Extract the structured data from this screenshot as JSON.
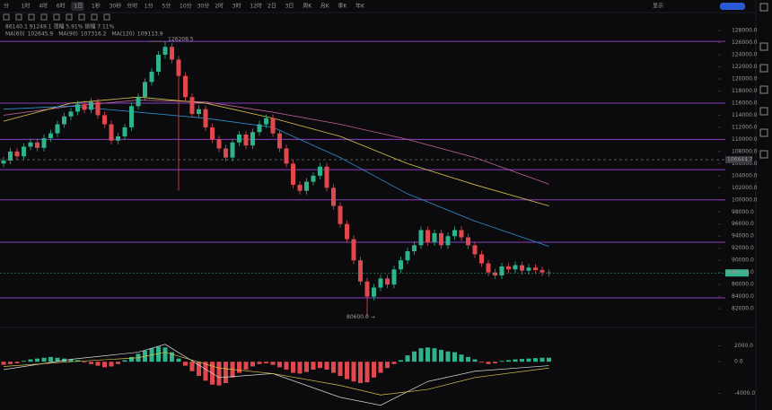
{
  "toolbar": {
    "timeframes": [
      "分",
      "1时",
      "4时",
      "6时",
      "1日",
      "1秒",
      "30秒",
      "分时",
      "1分",
      "5分",
      "10分",
      "30分",
      "2时",
      "3时",
      "12时",
      "2日",
      "3日",
      "周K",
      "月K",
      "季K",
      "年K"
    ],
    "selected": "1日",
    "right": [
      "显示"
    ]
  },
  "chart_data": {
    "type": "candlestick",
    "info_line": "86140.1  91249.1  涨幅 5.91%  振幅 7.11%",
    "colors": {
      "up": "#2fb38a",
      "down": "#e0484d",
      "level": "#8a3fbf"
    },
    "open": [
      106000,
      106500,
      108000,
      107200,
      108800,
      109500,
      108600,
      110200,
      111000,
      112500,
      113800,
      114600,
      115800,
      114900,
      116200,
      114000,
      112500,
      109800,
      110500,
      112000,
      115500,
      117000,
      119500,
      121200,
      124000,
      125300,
      123200,
      120500,
      117000,
      114200,
      115000,
      112000,
      110000,
      108500,
      107000,
      109500,
      110800,
      109000,
      111200,
      112500,
      113500,
      111000,
      108500,
      106000,
      102500,
      101500,
      103000,
      104000,
      105500,
      102000,
      99000,
      96000,
      93500,
      90000,
      86500,
      84000,
      85500,
      87000,
      86000,
      88500,
      90000,
      91500,
      92500,
      95000,
      93000,
      94500,
      92500,
      94000,
      95000,
      93800,
      92500,
      91000,
      89500,
      88000,
      87500,
      89000,
      88500,
      89200,
      88300,
      88800,
      88400,
      88000
    ],
    "high": [
      107100,
      108600,
      108600,
      109400,
      110100,
      110100,
      110800,
      111600,
      113100,
      114400,
      115200,
      116400,
      116400,
      116800,
      116800,
      114600,
      113100,
      111100,
      112600,
      116100,
      117600,
      120100,
      121800,
      124600,
      126208.5,
      125900,
      123800,
      121100,
      117600,
      115600,
      115600,
      112600,
      110600,
      109100,
      110100,
      111400,
      111400,
      111800,
      113100,
      114100,
      114100,
      111600,
      109100,
      106600,
      103100,
      103600,
      104600,
      106100,
      106100,
      102600,
      99600,
      96600,
      94100,
      90600,
      87100,
      86100,
      87600,
      87600,
      89100,
      90600,
      92100,
      93100,
      95600,
      95600,
      95100,
      95100,
      94600,
      95600,
      95600,
      94400,
      93100,
      91600,
      90100,
      88600,
      89600,
      89600,
      89800,
      89800,
      89400,
      89400,
      89000,
      88500
    ],
    "low": [
      105400,
      105900,
      106600,
      106600,
      108200,
      108000,
      108000,
      109600,
      110400,
      111900,
      113200,
      114000,
      114300,
      114300,
      113400,
      111900,
      109200,
      109200,
      109900,
      111400,
      114900,
      116400,
      118900,
      120600,
      123400,
      122600,
      101500,
      116400,
      113600,
      113600,
      111400,
      109400,
      107900,
      106400,
      106400,
      108900,
      108400,
      108400,
      110600,
      111900,
      110400,
      107900,
      105400,
      101900,
      100900,
      100900,
      102400,
      103400,
      101400,
      98400,
      95400,
      92900,
      89400,
      85900,
      80600,
      83400,
      84900,
      85400,
      85400,
      87900,
      89400,
      90900,
      91900,
      92400,
      92400,
      91900,
      91900,
      93400,
      93200,
      91900,
      90400,
      88900,
      87400,
      86900,
      86900,
      87900,
      87900,
      87700,
      87700,
      87800,
      87400,
      87300
    ],
    "close": [
      106500,
      108000,
      107200,
      108800,
      109500,
      108600,
      110200,
      111000,
      112500,
      113800,
      114600,
      115800,
      114900,
      116200,
      114000,
      112500,
      109800,
      110500,
      112000,
      115500,
      117000,
      119500,
      121200,
      124000,
      125300,
      123200,
      120500,
      117000,
      114200,
      115000,
      112000,
      110000,
      108500,
      107000,
      109500,
      110800,
      109000,
      111200,
      112500,
      113500,
      111000,
      108500,
      106000,
      102500,
      101500,
      103000,
      104000,
      105500,
      102000,
      99000,
      96000,
      93500,
      90000,
      86500,
      84000,
      85500,
      87000,
      86000,
      88500,
      90000,
      91500,
      92500,
      95000,
      93000,
      94500,
      92500,
      94000,
      95000,
      93800,
      92500,
      91000,
      89500,
      88000,
      87500,
      89000,
      88500,
      89200,
      88300,
      88800,
      88400,
      88000,
      87913.5
    ],
    "series": [
      {
        "name": "MA(60)",
        "value_label": "102645.9",
        "color": "#c0609a",
        "x": [
          0,
          10,
          20,
          30,
          40,
          50,
          60,
          70,
          81
        ],
        "values": [
          114000,
          115500,
          116500,
          116200,
          114500,
          112500,
          110000,
          107000,
          102600
        ]
      },
      {
        "name": "MA(90)",
        "value_label": "107316.2",
        "color": "#d8c24a",
        "x": [
          0,
          10,
          20,
          30,
          40,
          50,
          60,
          70,
          81
        ],
        "values": [
          113000,
          116000,
          117000,
          116000,
          113500,
          110500,
          106000,
          102500,
          99000
        ]
      },
      {
        "name": "MA(120)",
        "value_label": "109113.9",
        "color": "#2f8fd0",
        "x": [
          0,
          10,
          20,
          30,
          40,
          50,
          60,
          70,
          81
        ],
        "values": [
          115000,
          115500,
          114500,
          113500,
          112000,
          107000,
          101000,
          96500,
          92300
        ]
      }
    ],
    "levels": [
      126208.5,
      116000,
      110000,
      105000,
      100000,
      93000,
      83800
    ],
    "ref_price": 106644.7,
    "annotations": [
      "126208.5",
      "80600.0 →"
    ],
    "ylim": [
      78900,
      128900
    ],
    "yticks": [
      {
        "value": 82000,
        "label": "82000.0"
      },
      {
        "value": 84000,
        "label": "84000.0"
      },
      {
        "value": 86000,
        "label": "86000.0"
      },
      {
        "value": 88000,
        "label": "88000.0"
      },
      {
        "value": 90000,
        "label": "90000.0"
      },
      {
        "value": 92000,
        "label": "92000.0"
      },
      {
        "value": 94000,
        "label": "94000.0"
      },
      {
        "value": 96000,
        "label": "96000.0"
      },
      {
        "value": 98000,
        "label": "98000.0"
      },
      {
        "value": 100000,
        "label": "100000.0"
      },
      {
        "value": 102000,
        "label": "102000.0"
      },
      {
        "value": 104000,
        "label": "104000.0"
      },
      {
        "value": 106000,
        "label": "106000.0"
      },
      {
        "value": 108000,
        "label": "108000.0"
      },
      {
        "value": 110000,
        "label": "110000.0"
      },
      {
        "value": 112000,
        "label": "112000.0"
      },
      {
        "value": 114000,
        "label": "114000.0"
      },
      {
        "value": 116000,
        "label": "116000.0"
      },
      {
        "value": 118000,
        "label": "118000.0"
      },
      {
        "value": 120000,
        "label": "120000.0"
      },
      {
        "value": 122000,
        "label": "122000.0"
      },
      {
        "value": 124000,
        "label": "124000.0"
      },
      {
        "value": 126000,
        "label": "126000.0"
      },
      {
        "value": 128000,
        "label": "128000.0"
      }
    ],
    "macd": {
      "hist": [
        -400,
        -300,
        -200,
        100,
        300,
        400,
        500,
        600,
        500,
        400,
        300,
        200,
        -100,
        -300,
        -500,
        -700,
        -600,
        -300,
        200,
        600,
        1000,
        1400,
        1700,
        1900,
        1800,
        1200,
        400,
        -500,
        -1200,
        -1800,
        -2400,
        -2900,
        -3000,
        -2700,
        -2000,
        -1400,
        -1000,
        -600,
        -300,
        -200,
        -400,
        -700,
        -1000,
        -1400,
        -1500,
        -1300,
        -1000,
        -800,
        -1000,
        -1400,
        -1800,
        -2200,
        -2500,
        -2700,
        -2600,
        -2000,
        -1400,
        -800,
        -300,
        200,
        800,
        1300,
        1700,
        1800,
        1700,
        1500,
        1300,
        1200,
        900,
        600,
        300,
        -100,
        -300,
        -200,
        100,
        200,
        300,
        350,
        400,
        450,
        500,
        500
      ],
      "lines": [
        {
          "color": "#d9d9d9",
          "x": [
            0,
            10,
            20,
            24,
            32,
            40,
            50,
            56,
            63,
            70,
            81
          ],
          "values": [
            -1000,
            300,
            1200,
            2200,
            -2000,
            -1500,
            -4500,
            -5500,
            -2500,
            -1200,
            -500
          ]
        },
        {
          "color": "#d8c24a",
          "x": [
            0,
            10,
            20,
            24,
            32,
            40,
            50,
            56,
            63,
            70,
            81
          ],
          "values": [
            -600,
            0,
            500,
            1200,
            -800,
            -1500,
            -3000,
            -4200,
            -3500,
            -2000,
            -800
          ]
        }
      ],
      "ylim": [
        -6100,
        4100
      ],
      "yticks": [
        {
          "value": 2000,
          "label": "2000.0"
        },
        {
          "value": 0,
          "label": "0.0"
        },
        {
          "value": -4000,
          "label": "-4000.0"
        }
      ]
    }
  }
}
